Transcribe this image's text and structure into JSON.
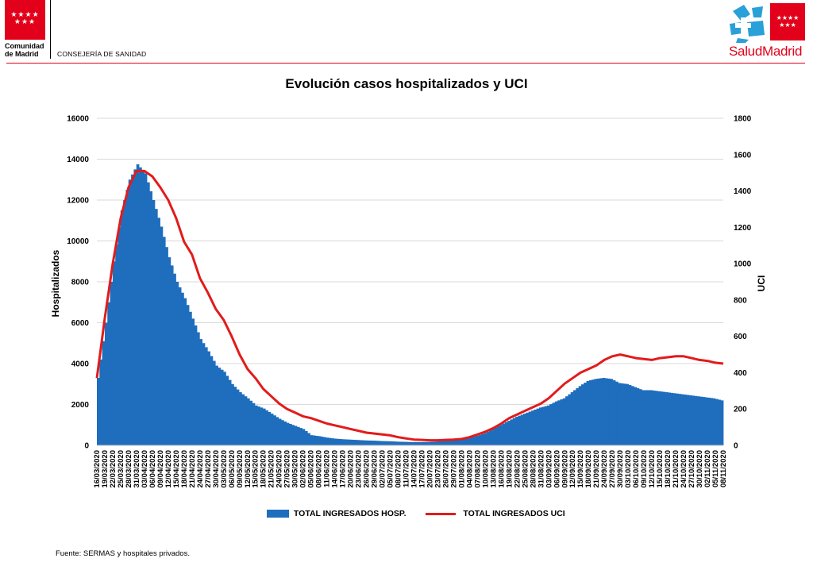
{
  "header": {
    "left_org_line1": "Comunidad",
    "left_org_line2": "de Madrid",
    "left_dept": "CONSEJERÍA DE SANIDAD",
    "right_logo_text": "SaludMadrid",
    "stars": "★★★★ ★★★",
    "colors": {
      "brand_red": "#e2001a",
      "brand_blue": "#2aa0d8"
    }
  },
  "chart_data": {
    "type": "bar+line",
    "title": "Evolución casos hospitalizados y UCI",
    "ylabel_left": "Hospitalizados",
    "ylabel_right": "UCI",
    "ylim_left": [
      0,
      16000
    ],
    "ylim_right": [
      0,
      1800
    ],
    "yticks_left": [
      0,
      2000,
      4000,
      6000,
      8000,
      10000,
      12000,
      14000,
      16000
    ],
    "yticks_right": [
      0,
      200,
      400,
      600,
      800,
      1000,
      1200,
      1400,
      1600,
      1800
    ],
    "x_start": "16/03/2020",
    "x_end": "08/11/2020",
    "x_tick_labels": [
      "16/03/2020",
      "19/03/2020",
      "22/03/2020",
      "25/03/2020",
      "28/03/2020",
      "31/03/2020",
      "03/04/2020",
      "06/04/2020",
      "09/04/2020",
      "12/04/2020",
      "15/04/2020",
      "18/04/2020",
      "21/04/2020",
      "24/04/2020",
      "27/04/2020",
      "30/04/2020",
      "03/05/2020",
      "06/05/2020",
      "09/05/2020",
      "12/05/2020",
      "15/05/2020",
      "18/05/2020",
      "21/05/2020",
      "24/05/2020",
      "27/05/2020",
      "30/05/2020",
      "02/06/2020",
      "05/06/2020",
      "08/06/2020",
      "11/06/2020",
      "14/06/2020",
      "17/06/2020",
      "20/06/2020",
      "23/06/2020",
      "26/06/2020",
      "29/06/2020",
      "02/07/2020",
      "05/07/2020",
      "08/07/2020",
      "11/07/2020",
      "14/07/2020",
      "17/07/2020",
      "20/07/2020",
      "23/07/2020",
      "26/07/2020",
      "29/07/2020",
      "01/08/2020",
      "04/08/2020",
      "07/08/2020",
      "10/08/2020",
      "13/08/2020",
      "16/08/2020",
      "19/08/2020",
      "22/08/2020",
      "25/08/2020",
      "28/08/2020",
      "31/08/2020",
      "03/09/2020",
      "06/09/2020",
      "09/09/2020",
      "12/09/2020",
      "15/09/2020",
      "18/09/2020",
      "21/09/2020",
      "24/09/2020",
      "27/09/2020",
      "30/09/2020",
      "03/10/2020",
      "06/10/2020",
      "09/10/2020",
      "12/10/2020",
      "15/10/2020",
      "18/10/2020",
      "21/10/2020",
      "24/10/2020",
      "27/10/2020",
      "30/10/2020",
      "02/11/2020",
      "05/11/2020",
      "08/11/2020"
    ],
    "grid": "horizontal",
    "legend_position": "bottom",
    "series": [
      {
        "name": "TOTAL INGRESADOS HOSP.",
        "type": "bar",
        "axis": "left",
        "color": "#1f6ebd",
        "points": [
          [
            "16/03/2020",
            3300
          ],
          [
            "19/03/2020",
            6000
          ],
          [
            "22/03/2020",
            9000
          ],
          [
            "25/03/2020",
            11500
          ],
          [
            "28/03/2020",
            13000
          ],
          [
            "31/03/2020",
            13750
          ],
          [
            "03/04/2020",
            13300
          ],
          [
            "06/04/2020",
            12000
          ],
          [
            "09/04/2020",
            10700
          ],
          [
            "12/04/2020",
            9200
          ],
          [
            "15/04/2020",
            8000
          ],
          [
            "18/04/2020",
            7200
          ],
          [
            "21/04/2020",
            6200
          ],
          [
            "24/04/2020",
            5200
          ],
          [
            "27/04/2020",
            4600
          ],
          [
            "30/04/2020",
            3900
          ],
          [
            "03/05/2020",
            3600
          ],
          [
            "06/05/2020",
            3000
          ],
          [
            "09/05/2020",
            2600
          ],
          [
            "12/05/2020",
            2300
          ],
          [
            "15/05/2020",
            1950
          ],
          [
            "18/05/2020",
            1800
          ],
          [
            "21/05/2020",
            1550
          ],
          [
            "24/05/2020",
            1300
          ],
          [
            "27/05/2020",
            1100
          ],
          [
            "30/05/2020",
            950
          ],
          [
            "02/06/2020",
            800
          ],
          [
            "05/06/2020",
            500
          ],
          [
            "08/06/2020",
            450
          ],
          [
            "11/06/2020",
            380
          ],
          [
            "14/06/2020",
            330
          ],
          [
            "17/06/2020",
            300
          ],
          [
            "20/06/2020",
            280
          ],
          [
            "23/06/2020",
            260
          ],
          [
            "26/06/2020",
            240
          ],
          [
            "29/06/2020",
            230
          ],
          [
            "02/07/2020",
            210
          ],
          [
            "05/07/2020",
            200
          ],
          [
            "08/07/2020",
            180
          ],
          [
            "11/07/2020",
            170
          ],
          [
            "14/07/2020",
            160
          ],
          [
            "17/07/2020",
            160
          ],
          [
            "20/07/2020",
            170
          ],
          [
            "23/07/2020",
            190
          ],
          [
            "26/07/2020",
            220
          ],
          [
            "29/07/2020",
            260
          ],
          [
            "01/08/2020",
            310
          ],
          [
            "04/08/2020",
            380
          ],
          [
            "07/08/2020",
            470
          ],
          [
            "10/08/2020",
            600
          ],
          [
            "13/08/2020",
            800
          ],
          [
            "16/08/2020",
            1000
          ],
          [
            "19/08/2020",
            1200
          ],
          [
            "22/08/2020",
            1400
          ],
          [
            "25/08/2020",
            1550
          ],
          [
            "28/08/2020",
            1700
          ],
          [
            "31/08/2020",
            1850
          ],
          [
            "03/09/2020",
            1950
          ],
          [
            "06/09/2020",
            2150
          ],
          [
            "09/09/2020",
            2300
          ],
          [
            "12/09/2020",
            2600
          ],
          [
            "15/09/2020",
            2900
          ],
          [
            "18/09/2020",
            3150
          ],
          [
            "21/09/2020",
            3250
          ],
          [
            "24/09/2020",
            3300
          ],
          [
            "27/09/2020",
            3250
          ],
          [
            "30/09/2020",
            3050
          ],
          [
            "03/10/2020",
            3000
          ],
          [
            "06/10/2020",
            2850
          ],
          [
            "09/10/2020",
            2700
          ],
          [
            "12/10/2020",
            2700
          ],
          [
            "15/10/2020",
            2650
          ],
          [
            "18/10/2020",
            2600
          ],
          [
            "21/10/2020",
            2550
          ],
          [
            "24/10/2020",
            2500
          ],
          [
            "27/10/2020",
            2450
          ],
          [
            "30/10/2020",
            2400
          ],
          [
            "02/11/2020",
            2350
          ],
          [
            "05/11/2020",
            2300
          ],
          [
            "08/11/2020",
            2200
          ]
        ]
      },
      {
        "name": "TOTAL INGRESADOS UCI",
        "type": "line",
        "axis": "right",
        "color": "#e21b1b",
        "points": [
          [
            "16/03/2020",
            370
          ],
          [
            "19/03/2020",
            700
          ],
          [
            "22/03/2020",
            1000
          ],
          [
            "25/03/2020",
            1250
          ],
          [
            "28/03/2020",
            1420
          ],
          [
            "31/03/2020",
            1510
          ],
          [
            "03/04/2020",
            1510
          ],
          [
            "06/04/2020",
            1480
          ],
          [
            "09/04/2020",
            1420
          ],
          [
            "12/04/2020",
            1350
          ],
          [
            "15/04/2020",
            1250
          ],
          [
            "18/04/2020",
            1120
          ],
          [
            "21/04/2020",
            1050
          ],
          [
            "24/04/2020",
            920
          ],
          [
            "27/04/2020",
            840
          ],
          [
            "30/04/2020",
            750
          ],
          [
            "03/05/2020",
            690
          ],
          [
            "06/05/2020",
            600
          ],
          [
            "09/05/2020",
            500
          ],
          [
            "12/05/2020",
            420
          ],
          [
            "15/05/2020",
            370
          ],
          [
            "18/05/2020",
            310
          ],
          [
            "21/05/2020",
            270
          ],
          [
            "24/05/2020",
            230
          ],
          [
            "27/05/2020",
            200
          ],
          [
            "30/05/2020",
            180
          ],
          [
            "02/06/2020",
            160
          ],
          [
            "05/06/2020",
            150
          ],
          [
            "08/06/2020",
            135
          ],
          [
            "11/06/2020",
            120
          ],
          [
            "14/06/2020",
            110
          ],
          [
            "17/06/2020",
            100
          ],
          [
            "20/06/2020",
            90
          ],
          [
            "23/06/2020",
            80
          ],
          [
            "26/06/2020",
            70
          ],
          [
            "29/06/2020",
            65
          ],
          [
            "02/07/2020",
            60
          ],
          [
            "05/07/2020",
            55
          ],
          [
            "08/07/2020",
            45
          ],
          [
            "11/07/2020",
            38
          ],
          [
            "14/07/2020",
            32
          ],
          [
            "17/07/2020",
            30
          ],
          [
            "20/07/2020",
            28
          ],
          [
            "23/07/2020",
            28
          ],
          [
            "26/07/2020",
            30
          ],
          [
            "29/07/2020",
            32
          ],
          [
            "01/08/2020",
            35
          ],
          [
            "04/08/2020",
            45
          ],
          [
            "07/08/2020",
            60
          ],
          [
            "10/08/2020",
            75
          ],
          [
            "13/08/2020",
            95
          ],
          [
            "16/08/2020",
            120
          ],
          [
            "19/08/2020",
            150
          ],
          [
            "22/08/2020",
            170
          ],
          [
            "25/08/2020",
            190
          ],
          [
            "28/08/2020",
            210
          ],
          [
            "31/08/2020",
            230
          ],
          [
            "03/09/2020",
            260
          ],
          [
            "06/09/2020",
            300
          ],
          [
            "09/09/2020",
            340
          ],
          [
            "12/09/2020",
            370
          ],
          [
            "15/09/2020",
            400
          ],
          [
            "18/09/2020",
            420
          ],
          [
            "21/09/2020",
            440
          ],
          [
            "24/09/2020",
            470
          ],
          [
            "27/09/2020",
            490
          ],
          [
            "30/09/2020",
            500
          ],
          [
            "03/10/2020",
            490
          ],
          [
            "06/10/2020",
            480
          ],
          [
            "09/10/2020",
            475
          ],
          [
            "12/10/2020",
            470
          ],
          [
            "15/10/2020",
            480
          ],
          [
            "18/10/2020",
            485
          ],
          [
            "21/10/2020",
            490
          ],
          [
            "24/10/2020",
            490
          ],
          [
            "27/10/2020",
            480
          ],
          [
            "30/10/2020",
            470
          ],
          [
            "02/11/2020",
            465
          ],
          [
            "05/11/2020",
            455
          ],
          [
            "08/11/2020",
            450
          ]
        ]
      }
    ]
  },
  "footer": {
    "source": "Fuente: SERMAS y hospitales privados."
  }
}
